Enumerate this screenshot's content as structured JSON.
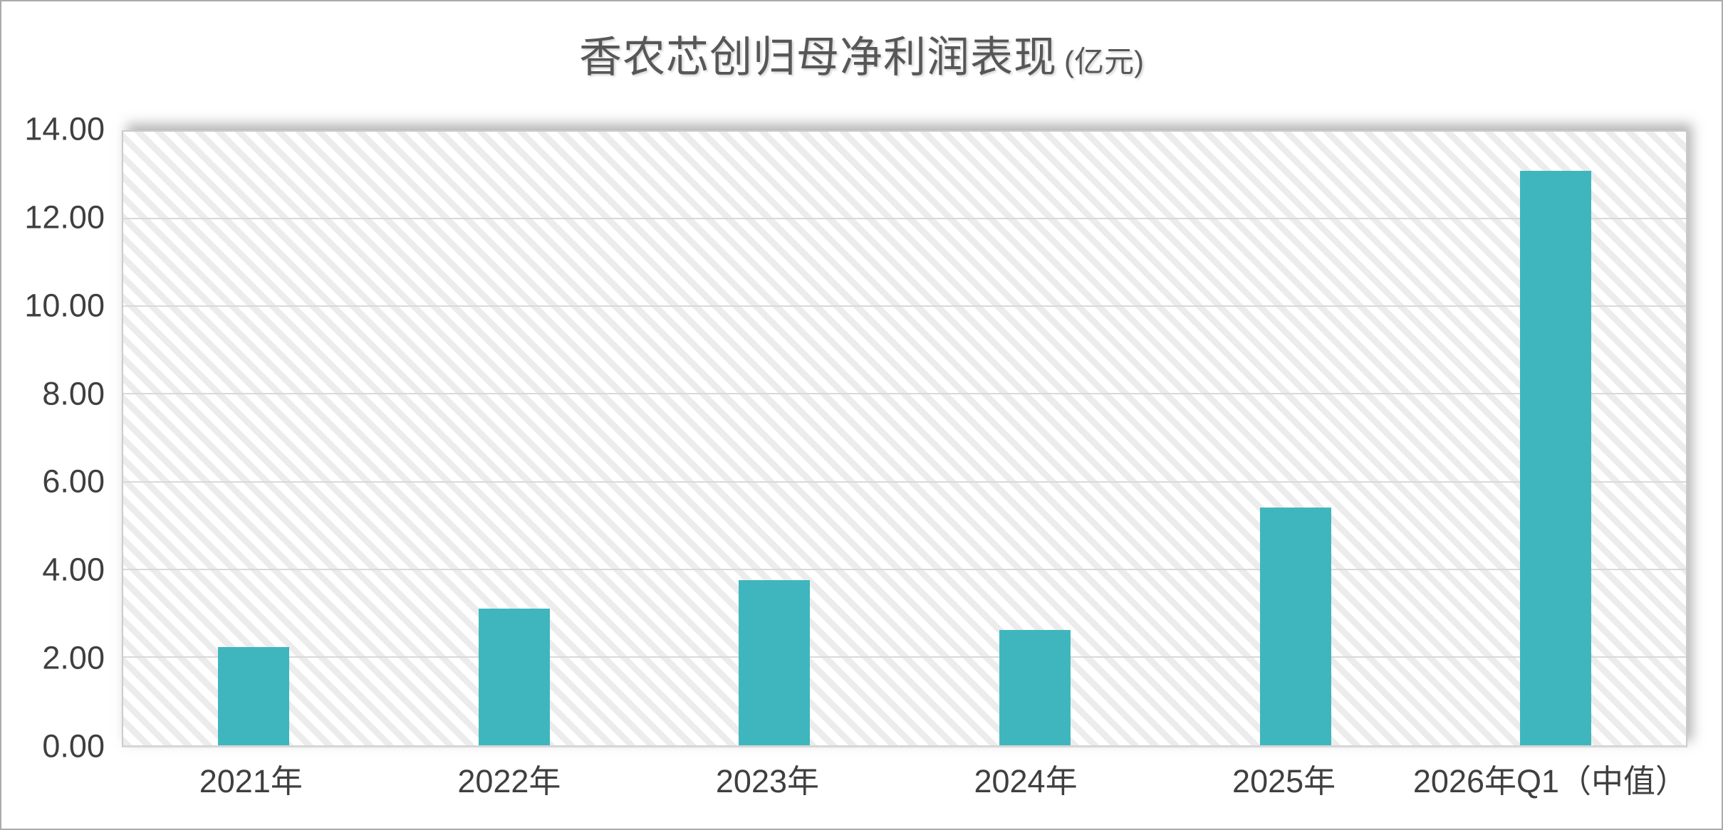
{
  "header": {
    "title": "香农芯创归母净利润表现",
    "unit_label": "(亿元)"
  },
  "colors": {
    "bar": "#3FB6BD",
    "gridline": "#d9d9d9",
    "axis_text": "#3f3f3f",
    "title_text": "#575757",
    "frame_border": "#ababab",
    "hatch_stripe": "#ececec"
  },
  "chart_data": {
    "type": "bar",
    "title": "香农芯创归母净利润表现",
    "unit_label": "(亿元)",
    "categories": [
      "2021年",
      "2022年",
      "2023年",
      "2024年",
      "2025年",
      "2026年Q1（中值）"
    ],
    "values": [
      2.24,
      3.12,
      3.77,
      2.63,
      5.43,
      13.1
    ],
    "ylabel": "",
    "xlabel": "",
    "ylim": [
      0,
      14
    ],
    "y_tick_step": 2,
    "y_ticks": [
      "0.00",
      "2.00",
      "4.00",
      "6.00",
      "8.00",
      "10.00",
      "12.00",
      "14.00"
    ],
    "grid": true,
    "legend_position": "none",
    "plot_background": "diagonal-hatch"
  }
}
